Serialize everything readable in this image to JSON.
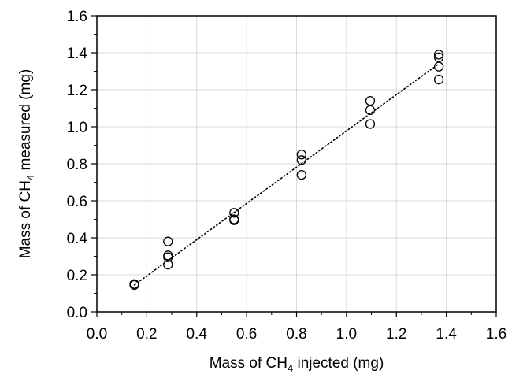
{
  "chart_data": {
    "type": "scatter",
    "xlabel": {
      "before": "Mass of CH",
      "sub": "4",
      "after": " injected (mg)"
    },
    "ylabel": {
      "before": "Mass of CH",
      "sub": "4",
      "after": " measured (mg)"
    },
    "xlim": [
      0.0,
      1.6
    ],
    "ylim": [
      0.0,
      1.6
    ],
    "major_step": 0.2,
    "minor_step": 0.1,
    "grid": true,
    "xticks": [
      "0.0",
      "0.2",
      "0.4",
      "0.6",
      "0.8",
      "1.0",
      "1.2",
      "1.4",
      "1.6"
    ],
    "yticks": [
      "0.0",
      "0.2",
      "0.4",
      "0.6",
      "0.8",
      "1.0",
      "1.2",
      "1.4",
      "1.6"
    ],
    "series": [
      {
        "marker": "open-circle",
        "points": [
          {
            "x": 0.15,
            "y": 0.15
          },
          {
            "x": 0.15,
            "y": 0.148
          },
          {
            "x": 0.15,
            "y": 0.145
          },
          {
            "x": 0.285,
            "y": 0.38
          },
          {
            "x": 0.285,
            "y": 0.305
          },
          {
            "x": 0.285,
            "y": 0.295
          },
          {
            "x": 0.285,
            "y": 0.255
          },
          {
            "x": 0.55,
            "y": 0.535
          },
          {
            "x": 0.55,
            "y": 0.5
          },
          {
            "x": 0.55,
            "y": 0.495
          },
          {
            "x": 0.82,
            "y": 0.85
          },
          {
            "x": 0.82,
            "y": 0.82
          },
          {
            "x": 0.82,
            "y": 0.74
          },
          {
            "x": 1.095,
            "y": 1.14
          },
          {
            "x": 1.095,
            "y": 1.09
          },
          {
            "x": 1.095,
            "y": 1.015
          },
          {
            "x": 1.37,
            "y": 1.39
          },
          {
            "x": 1.37,
            "y": 1.375
          },
          {
            "x": 1.37,
            "y": 1.325
          },
          {
            "x": 1.37,
            "y": 1.255
          }
        ]
      }
    ],
    "trendline": {
      "style": "dotted",
      "from": {
        "x": 0.15,
        "y": 0.145
      },
      "to": {
        "x": 1.37,
        "y": 1.34
      }
    }
  }
}
